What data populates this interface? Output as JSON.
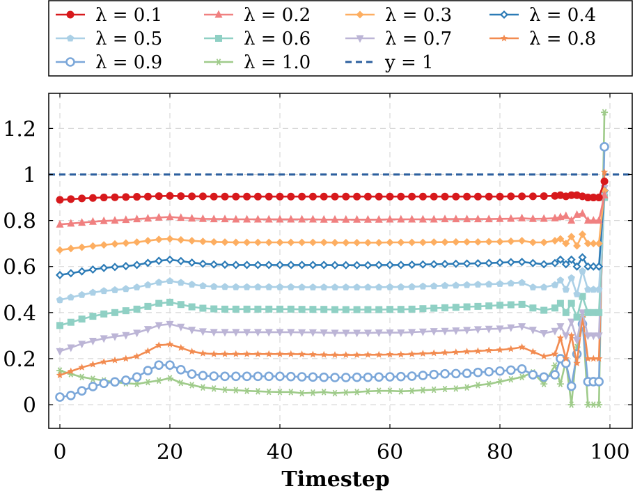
{
  "chart_data": {
    "type": "line",
    "title": "",
    "xlabel": "Timestep",
    "ylabel": "",
    "xlim": [
      -2,
      102
    ],
    "ylim": [
      -0.1,
      1.35
    ],
    "xticks": [
      0,
      20,
      40,
      60,
      80,
      100
    ],
    "xtick_labels": [
      "0",
      "20",
      "40",
      "60",
      "80",
      "100"
    ],
    "yticks": [
      0,
      0.2,
      0.4,
      0.6,
      0.8,
      1.0,
      1.2
    ],
    "ytick_labels": [
      "0",
      "0.2",
      "0.4",
      "0.6",
      "0.8",
      "1",
      "1.2"
    ],
    "grid": true,
    "legend_position": "top",
    "x": [
      0,
      2,
      4,
      6,
      8,
      10,
      12,
      14,
      16,
      18,
      20,
      22,
      24,
      26,
      28,
      30,
      32,
      34,
      36,
      38,
      40,
      42,
      44,
      46,
      48,
      50,
      52,
      54,
      56,
      58,
      60,
      62,
      64,
      66,
      68,
      70,
      72,
      74,
      76,
      78,
      80,
      82,
      84,
      86,
      88,
      90,
      91,
      92,
      93,
      94,
      95,
      96,
      97,
      98,
      99
    ],
    "series": [
      {
        "name": "λ = 0.1",
        "color": "#d7191c",
        "marker": "circle",
        "values": [
          0.89,
          0.893,
          0.896,
          0.898,
          0.9,
          0.901,
          0.902,
          0.903,
          0.904,
          0.906,
          0.907,
          0.906,
          0.905,
          0.905,
          0.904,
          0.904,
          0.904,
          0.904,
          0.904,
          0.904,
          0.904,
          0.904,
          0.904,
          0.904,
          0.904,
          0.904,
          0.904,
          0.904,
          0.904,
          0.904,
          0.904,
          0.904,
          0.904,
          0.904,
          0.904,
          0.904,
          0.904,
          0.904,
          0.904,
          0.904,
          0.904,
          0.905,
          0.905,
          0.905,
          0.906,
          0.907,
          0.91,
          0.905,
          0.91,
          0.91,
          0.905,
          0.9,
          0.9,
          0.9,
          0.97
        ]
      },
      {
        "name": "λ = 0.2",
        "color": "#f08080",
        "marker": "triangle",
        "values": [
          0.783,
          0.787,
          0.791,
          0.795,
          0.798,
          0.8,
          0.803,
          0.806,
          0.809,
          0.813,
          0.815,
          0.812,
          0.809,
          0.807,
          0.806,
          0.806,
          0.805,
          0.805,
          0.805,
          0.805,
          0.805,
          0.805,
          0.805,
          0.805,
          0.804,
          0.804,
          0.804,
          0.804,
          0.804,
          0.804,
          0.805,
          0.805,
          0.805,
          0.805,
          0.805,
          0.806,
          0.806,
          0.806,
          0.806,
          0.806,
          0.807,
          0.808,
          0.81,
          0.807,
          0.808,
          0.81,
          0.815,
          0.82,
          0.8,
          0.825,
          0.83,
          0.8,
          0.8,
          0.8,
          0.91
        ]
      },
      {
        "name": "λ = 0.3",
        "color": "#fdae61",
        "marker": "diamond",
        "values": [
          0.672,
          0.678,
          0.684,
          0.689,
          0.694,
          0.698,
          0.702,
          0.706,
          0.712,
          0.718,
          0.72,
          0.716,
          0.712,
          0.709,
          0.707,
          0.706,
          0.705,
          0.705,
          0.705,
          0.705,
          0.705,
          0.705,
          0.705,
          0.705,
          0.705,
          0.704,
          0.704,
          0.704,
          0.704,
          0.704,
          0.705,
          0.705,
          0.705,
          0.705,
          0.706,
          0.706,
          0.707,
          0.707,
          0.707,
          0.708,
          0.708,
          0.71,
          0.712,
          0.705,
          0.705,
          0.712,
          0.72,
          0.7,
          0.73,
          0.69,
          0.74,
          0.7,
          0.7,
          0.7,
          0.93
        ]
      },
      {
        "name": "λ = 0.4",
        "color": "#2c7bb6",
        "marker": "diamond-open",
        "values": [
          0.563,
          0.571,
          0.579,
          0.587,
          0.594,
          0.598,
          0.602,
          0.607,
          0.616,
          0.625,
          0.63,
          0.624,
          0.617,
          0.612,
          0.609,
          0.608,
          0.607,
          0.607,
          0.607,
          0.607,
          0.607,
          0.607,
          0.607,
          0.607,
          0.607,
          0.606,
          0.606,
          0.606,
          0.606,
          0.607,
          0.607,
          0.607,
          0.608,
          0.609,
          0.61,
          0.611,
          0.612,
          0.613,
          0.614,
          0.615,
          0.617,
          0.619,
          0.62,
          0.615,
          0.61,
          0.615,
          0.63,
          0.61,
          0.63,
          0.6,
          0.64,
          0.6,
          0.6,
          0.6,
          0.93
        ]
      },
      {
        "name": "λ = 0.5",
        "color": "#abd0e6",
        "marker": "pentagon",
        "values": [
          0.455,
          0.466,
          0.477,
          0.487,
          0.494,
          0.498,
          0.503,
          0.51,
          0.52,
          0.531,
          0.537,
          0.53,
          0.522,
          0.516,
          0.513,
          0.512,
          0.511,
          0.511,
          0.511,
          0.511,
          0.511,
          0.511,
          0.51,
          0.51,
          0.51,
          0.51,
          0.51,
          0.51,
          0.51,
          0.51,
          0.511,
          0.511,
          0.512,
          0.514,
          0.515,
          0.517,
          0.518,
          0.52,
          0.522,
          0.523,
          0.525,
          0.527,
          0.53,
          0.51,
          0.51,
          0.52,
          0.54,
          0.5,
          0.55,
          0.48,
          0.58,
          0.5,
          0.5,
          0.5,
          0.92
        ]
      },
      {
        "name": "λ = 0.6",
        "color": "#8fd0c4",
        "marker": "square",
        "values": [
          0.344,
          0.358,
          0.372,
          0.384,
          0.394,
          0.4,
          0.408,
          0.415,
          0.427,
          0.44,
          0.445,
          0.435,
          0.425,
          0.419,
          0.416,
          0.415,
          0.415,
          0.415,
          0.415,
          0.415,
          0.415,
          0.415,
          0.414,
          0.414,
          0.414,
          0.413,
          0.413,
          0.413,
          0.413,
          0.413,
          0.414,
          0.414,
          0.415,
          0.417,
          0.419,
          0.421,
          0.423,
          0.425,
          0.427,
          0.429,
          0.432,
          0.434,
          0.436,
          0.42,
          0.41,
          0.42,
          0.44,
          0.4,
          0.44,
          0.38,
          0.47,
          0.4,
          0.4,
          0.4,
          0.9
        ]
      },
      {
        "name": "λ = 0.7",
        "color": "#bcb5d6",
        "marker": "triangle-down",
        "values": [
          0.232,
          0.248,
          0.264,
          0.277,
          0.288,
          0.296,
          0.302,
          0.312,
          0.328,
          0.345,
          0.35,
          0.338,
          0.325,
          0.318,
          0.315,
          0.315,
          0.315,
          0.315,
          0.315,
          0.315,
          0.315,
          0.315,
          0.314,
          0.314,
          0.313,
          0.312,
          0.312,
          0.312,
          0.312,
          0.313,
          0.313,
          0.313,
          0.315,
          0.317,
          0.319,
          0.32,
          0.322,
          0.324,
          0.327,
          0.329,
          0.33,
          0.335,
          0.34,
          0.325,
          0.31,
          0.32,
          0.34,
          0.3,
          0.36,
          0.28,
          0.4,
          0.3,
          0.3,
          0.3,
          0.94
        ]
      },
      {
        "name": "λ = 0.8",
        "color": "#f28b50",
        "marker": "star",
        "values": [
          0.128,
          0.145,
          0.162,
          0.175,
          0.186,
          0.193,
          0.2,
          0.21,
          0.233,
          0.258,
          0.262,
          0.247,
          0.231,
          0.223,
          0.22,
          0.22,
          0.22,
          0.22,
          0.22,
          0.22,
          0.22,
          0.22,
          0.219,
          0.218,
          0.217,
          0.216,
          0.216,
          0.216,
          0.217,
          0.217,
          0.218,
          0.218,
          0.22,
          0.222,
          0.224,
          0.226,
          0.228,
          0.231,
          0.233,
          0.236,
          0.238,
          0.242,
          0.25,
          0.23,
          0.21,
          0.22,
          0.29,
          0.2,
          0.3,
          0.18,
          0.38,
          0.2,
          0.2,
          0.2,
          1.01
        ]
      },
      {
        "name": "λ = 0.9",
        "color": "#7ba7d9",
        "marker": "circle-open",
        "values": [
          0.033,
          0.04,
          0.06,
          0.079,
          0.093,
          0.099,
          0.106,
          0.12,
          0.148,
          0.172,
          0.172,
          0.152,
          0.133,
          0.126,
          0.124,
          0.123,
          0.123,
          0.123,
          0.123,
          0.123,
          0.123,
          0.122,
          0.121,
          0.12,
          0.119,
          0.118,
          0.118,
          0.119,
          0.119,
          0.12,
          0.121,
          0.122,
          0.124,
          0.127,
          0.131,
          0.134,
          0.135,
          0.136,
          0.14,
          0.143,
          0.146,
          0.15,
          0.155,
          0.13,
          0.12,
          0.13,
          0.2,
          0.18,
          0.08,
          0.22,
          0.35,
          0.1,
          0.1,
          0.1,
          1.12
        ]
      },
      {
        "name": "λ = 1.0",
        "color": "#9fcb8a",
        "marker": "asterisk",
        "values": [
          0.148,
          0.133,
          0.12,
          0.112,
          0.105,
          0.098,
          0.093,
          0.09,
          0.098,
          0.105,
          0.115,
          0.095,
          0.085,
          0.075,
          0.07,
          0.065,
          0.063,
          0.06,
          0.058,
          0.056,
          0.055,
          0.055,
          0.05,
          0.052,
          0.055,
          0.05,
          0.053,
          0.055,
          0.058,
          0.06,
          0.06,
          0.058,
          0.06,
          0.063,
          0.065,
          0.068,
          0.07,
          0.075,
          0.085,
          0.09,
          0.1,
          0.11,
          0.12,
          0.14,
          0.09,
          0.17,
          0.09,
          0.19,
          0.0,
          0.25,
          0.38,
          0.0,
          0.0,
          0.0,
          1.27
        ]
      },
      {
        "name": "y = 1",
        "color": "#2c5f9e",
        "marker": "none",
        "dashed": true,
        "constant": 1
      }
    ]
  }
}
